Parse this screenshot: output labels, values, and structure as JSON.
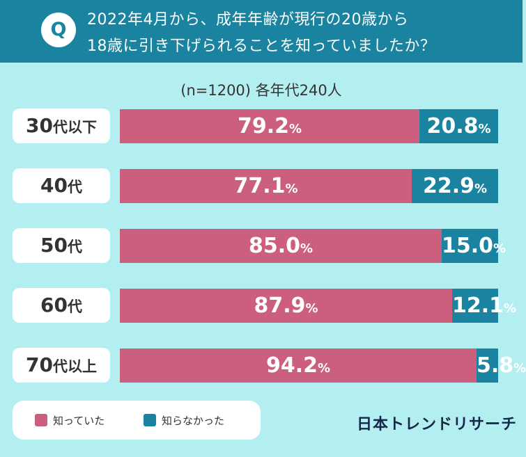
{
  "question": {
    "icon_label": "Q",
    "line1": "2022年4月から、成年年齢が現行の20歳から",
    "line2": "18歳に引き下げられることを知っていましたか？"
  },
  "sample_text": "(n=1200) 各年代240人",
  "colors": {
    "knew": "#cd5f7e",
    "didnt_know": "#1a839f",
    "background": "#b3eff0",
    "header": "#1a839f"
  },
  "chart_data": {
    "type": "bar",
    "orientation": "horizontal",
    "stacked": true,
    "unit": "%",
    "xlim": [
      0,
      100
    ],
    "categories": [
      {
        "age": "30",
        "suffix": "代以下"
      },
      {
        "age": "40",
        "suffix": "代"
      },
      {
        "age": "50",
        "suffix": "代"
      },
      {
        "age": "60",
        "suffix": "代"
      },
      {
        "age": "70",
        "suffix": "代以上"
      }
    ],
    "series": [
      {
        "name": "知っていた",
        "values": [
          "79.2",
          "77.1",
          "85.0",
          "87.9",
          "94.2"
        ]
      },
      {
        "name": "知らなかった",
        "values": [
          "20.8",
          "22.9",
          "15.0",
          "12.1",
          "5.8"
        ]
      }
    ],
    "legend_position": "bottom-left"
  },
  "brand": "日本トレンドリサーチ"
}
